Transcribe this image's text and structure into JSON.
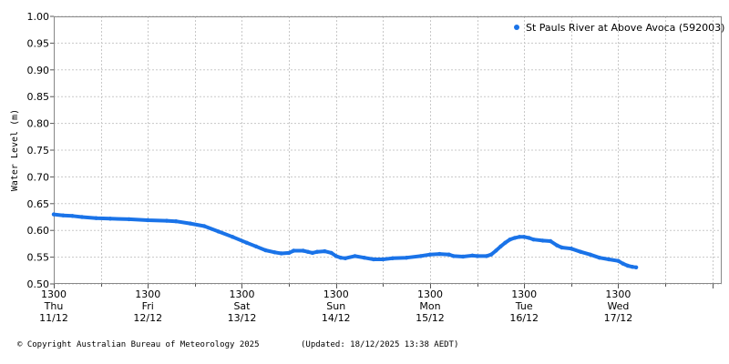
{
  "chart_data": {
    "type": "line",
    "ylabel": "Water Level (m)",
    "ylim": [
      0.5,
      1.0
    ],
    "yticks": [
      "0.50",
      "0.55",
      "0.60",
      "0.65",
      "0.70",
      "0.75",
      "0.80",
      "0.85",
      "0.90",
      "0.95",
      "1.00"
    ],
    "xlim_days": [
      11,
      18.1
    ],
    "x_unit": "day of December 2025 (fractional)",
    "xticks": [
      {
        "day": 11,
        "time": "1300",
        "weekday": "Thu",
        "date": "11/12"
      },
      {
        "day": 12,
        "time": "1300",
        "weekday": "Fri",
        "date": "12/12"
      },
      {
        "day": 13,
        "time": "1300",
        "weekday": "Sat",
        "date": "13/12"
      },
      {
        "day": 14,
        "time": "1300",
        "weekday": "Sun",
        "date": "14/12"
      },
      {
        "day": 15,
        "time": "1300",
        "weekday": "Mon",
        "date": "15/12"
      },
      {
        "day": 16,
        "time": "1300",
        "weekday": "Tue",
        "date": "16/12"
      },
      {
        "day": 17,
        "time": "1300",
        "weekday": "Wed",
        "date": "17/12"
      }
    ],
    "grid": true,
    "legend_position": "top-right",
    "series": [
      {
        "name": "St Pauls River at Above Avoca (592003)",
        "color": "#1a73e8",
        "points": [
          [
            11.0,
            0.63
          ],
          [
            11.1,
            0.628
          ],
          [
            11.2,
            0.627
          ],
          [
            11.3,
            0.625
          ],
          [
            11.45,
            0.623
          ],
          [
            11.6,
            0.622
          ],
          [
            11.8,
            0.621
          ],
          [
            12.0,
            0.619
          ],
          [
            12.2,
            0.618
          ],
          [
            12.3,
            0.617
          ],
          [
            12.45,
            0.613
          ],
          [
            12.6,
            0.608
          ],
          [
            12.75,
            0.598
          ],
          [
            12.9,
            0.588
          ],
          [
            13.05,
            0.577
          ],
          [
            13.15,
            0.57
          ],
          [
            13.25,
            0.563
          ],
          [
            13.35,
            0.559
          ],
          [
            13.42,
            0.557
          ],
          [
            13.5,
            0.558
          ],
          [
            13.55,
            0.562
          ],
          [
            13.65,
            0.562
          ],
          [
            13.7,
            0.56
          ],
          [
            13.75,
            0.558
          ],
          [
            13.8,
            0.56
          ],
          [
            13.88,
            0.561
          ],
          [
            13.95,
            0.558
          ],
          [
            14.0,
            0.552
          ],
          [
            14.05,
            0.549
          ],
          [
            14.1,
            0.548
          ],
          [
            14.2,
            0.552
          ],
          [
            14.3,
            0.549
          ],
          [
            14.4,
            0.546
          ],
          [
            14.5,
            0.546
          ],
          [
            14.6,
            0.548
          ],
          [
            14.75,
            0.549
          ],
          [
            14.9,
            0.552
          ],
          [
            15.0,
            0.555
          ],
          [
            15.1,
            0.556
          ],
          [
            15.2,
            0.555
          ],
          [
            15.25,
            0.552
          ],
          [
            15.35,
            0.551
          ],
          [
            15.45,
            0.553
          ],
          [
            15.5,
            0.552
          ],
          [
            15.6,
            0.552
          ],
          [
            15.65,
            0.555
          ],
          [
            15.7,
            0.562
          ],
          [
            15.75,
            0.57
          ],
          [
            15.8,
            0.577
          ],
          [
            15.85,
            0.583
          ],
          [
            15.9,
            0.586
          ],
          [
            15.95,
            0.588
          ],
          [
            16.0,
            0.588
          ],
          [
            16.05,
            0.586
          ],
          [
            16.1,
            0.583
          ],
          [
            16.2,
            0.581
          ],
          [
            16.28,
            0.58
          ],
          [
            16.35,
            0.572
          ],
          [
            16.4,
            0.568
          ],
          [
            16.5,
            0.566
          ],
          [
            16.6,
            0.56
          ],
          [
            16.7,
            0.555
          ],
          [
            16.8,
            0.549
          ],
          [
            16.9,
            0.546
          ],
          [
            17.0,
            0.543
          ],
          [
            17.05,
            0.538
          ],
          [
            17.1,
            0.534
          ],
          [
            17.15,
            0.532
          ],
          [
            17.19,
            0.531
          ]
        ]
      }
    ]
  },
  "footer": {
    "copyright": "© Copyright Australian Bureau of Meteorology 2025",
    "updated": "(Updated: 18/12/2025 13:38 AEDT)"
  }
}
